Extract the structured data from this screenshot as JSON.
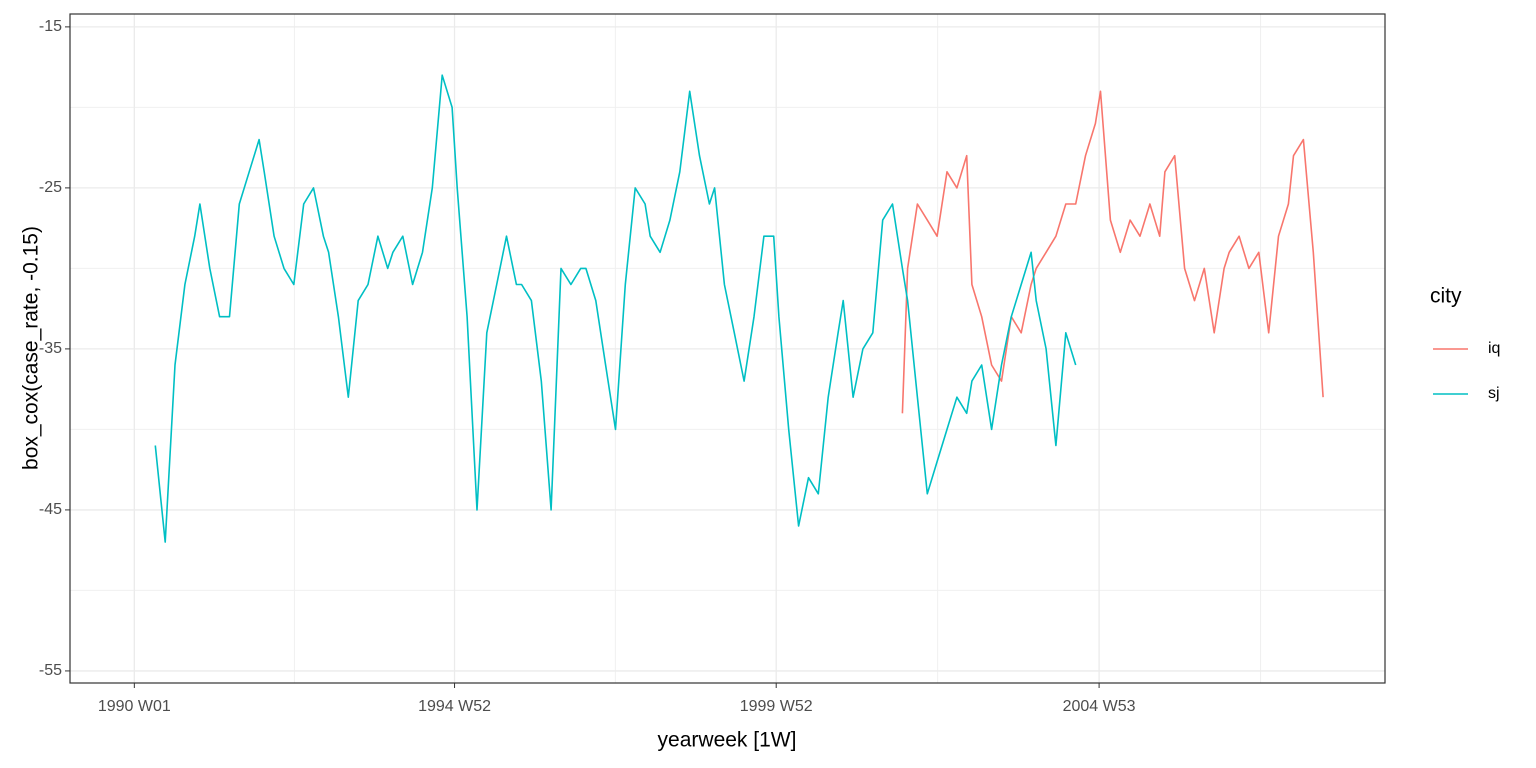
{
  "chart_data": {
    "type": "line",
    "x_label": "yearweek [1W]",
    "y_label": "box_cox(case_rate, -0.15)",
    "legend_title": "city",
    "legend_position": "right",
    "grid": true,
    "xlim": [
      "1989 W01",
      "2009 W24"
    ],
    "xticks": [
      "1990 W01",
      "1994 W52",
      "1999 W52",
      "2004 W53"
    ],
    "ylim": [
      -55.75,
      -14.2
    ],
    "yticks": [
      -15,
      -25,
      -35,
      -45,
      -55
    ],
    "x": [
      "1990 W02",
      "1990 W10",
      "1990 W18",
      "1990 W26",
      "1990 W34",
      "1990 W42",
      "1990 W50",
      "1991 W02",
      "1991 W10",
      "1991 W18",
      "1991 W26",
      "1991 W34",
      "1991 W42",
      "1991 W50",
      "1992 W02",
      "1992 W10",
      "1992 W18",
      "1992 W26",
      "1992 W34",
      "1992 W42",
      "1992 W50",
      "1993 W02",
      "1993 W10",
      "1993 W18",
      "1993 W26",
      "1993 W34",
      "1993 W42",
      "1993 W50",
      "1994 W02",
      "1994 W10",
      "1994 W18",
      "1994 W26",
      "1994 W34",
      "1994 W42",
      "1994 W50",
      "1995 W02",
      "1995 W10",
      "1995 W18",
      "1995 W26",
      "1995 W34",
      "1995 W42",
      "1995 W50",
      "1996 W02",
      "1996 W10",
      "1996 W18",
      "1996 W26",
      "1996 W34",
      "1996 W42",
      "1996 W50",
      "1997 W02",
      "1997 W10",
      "1997 W18",
      "1997 W26",
      "1997 W34",
      "1997 W42",
      "1997 W50",
      "1998 W02",
      "1998 W10",
      "1998 W18",
      "1998 W26",
      "1998 W34",
      "1998 W42",
      "1998 W50",
      "1999 W02",
      "1999 W10",
      "1999 W18",
      "1999 W26",
      "1999 W34",
      "1999 W42",
      "1999 W50",
      "2000 W02",
      "2000 W10",
      "2000 W18",
      "2000 W26",
      "2000 W34",
      "2000 W42",
      "2000 W50",
      "2001 W02",
      "2001 W10",
      "2001 W18",
      "2001 W26",
      "2001 W34",
      "2001 W42",
      "2001 W50",
      "2002 W02",
      "2002 W10",
      "2002 W18",
      "2002 W26",
      "2002 W34",
      "2002 W42",
      "2002 W50",
      "2003 W02",
      "2003 W10",
      "2003 W18",
      "2003 W26",
      "2003 W34",
      "2003 W42",
      "2003 W50",
      "2004 W02",
      "2004 W10",
      "2004 W18",
      "2004 W26",
      "2004 W34",
      "2004 W42",
      "2004 W50",
      "2005 W02",
      "2005 W10",
      "2005 W18",
      "2005 W26",
      "2005 W34",
      "2005 W42",
      "2005 W50",
      "2006 W02",
      "2006 W10",
      "2006 W18",
      "2006 W26",
      "2006 W34",
      "2006 W42",
      "2006 W50",
      "2007 W02",
      "2007 W10",
      "2007 W18",
      "2007 W26",
      "2007 W34",
      "2007 W42",
      "2007 W50",
      "2008 W02",
      "2008 W10",
      "2008 W18",
      "2008 W26",
      "2008 W34",
      "2008 W42",
      "2008 W50"
    ],
    "series": [
      {
        "name": "iq",
        "color": "#f8766d",
        "values": [
          null,
          null,
          null,
          null,
          null,
          null,
          null,
          null,
          null,
          null,
          null,
          null,
          null,
          null,
          null,
          null,
          null,
          null,
          null,
          null,
          null,
          null,
          null,
          null,
          null,
          null,
          null,
          null,
          null,
          null,
          null,
          null,
          null,
          null,
          null,
          null,
          null,
          null,
          null,
          null,
          null,
          null,
          null,
          null,
          null,
          null,
          null,
          null,
          null,
          null,
          null,
          null,
          null,
          null,
          null,
          null,
          null,
          null,
          null,
          null,
          null,
          null,
          null,
          null,
          null,
          null,
          null,
          null,
          null,
          null,
          null,
          null,
          null,
          null,
          null,
          null,
          null,
          null,
          null,
          null,
          null,
          null,
          null,
          -39,
          -30,
          -26,
          -27,
          -28,
          -24,
          -25,
          -23,
          -31,
          -33,
          -36,
          -37,
          -33,
          -34,
          -31,
          -30,
          -29,
          -28,
          -26,
          -26,
          -23,
          -21,
          -19,
          -27,
          -29,
          -27,
          -28,
          -26,
          -28,
          -24,
          -23,
          -30,
          -32,
          -30,
          -34,
          -30,
          -29,
          -28,
          -30,
          -29,
          -34,
          -28,
          -26,
          -23,
          -22,
          -29,
          -38,
          null,
          null,
          null
        ]
      },
      {
        "name": "sj",
        "color": "#00bfc4",
        "values": [
          null,
          null,
          -41,
          -47,
          -36,
          -31,
          -28,
          -26,
          -30,
          -33,
          -33,
          -26,
          -24,
          -22,
          -24,
          -28,
          -30,
          -31,
          -26,
          -25,
          -28,
          -29,
          -33,
          -38,
          -32,
          -31,
          -28,
          -30,
          -29,
          -28,
          -31,
          -29,
          -25,
          -18,
          -20,
          -25,
          -33,
          -45,
          -34,
          -31,
          -28,
          -31,
          -31,
          -32,
          -37,
          -45,
          -30,
          -31,
          -30,
          -30,
          -32,
          -36,
          -40,
          -31,
          -25,
          -26,
          -28,
          -29,
          -27,
          -24,
          -19,
          -23,
          -26,
          -25,
          -31,
          -34,
          -37,
          -33,
          -28,
          -28,
          -33,
          -40,
          -46,
          -43,
          -44,
          -38,
          -34,
          -32,
          -38,
          -35,
          -34,
          -27,
          -26,
          -30,
          -32,
          -38,
          -44,
          -42,
          -40,
          -38,
          -39,
          -37,
          -36,
          -40,
          -36,
          -33,
          -31,
          -29,
          -32,
          -35,
          -41,
          -34,
          -36,
          null,
          null,
          null,
          null,
          null,
          null,
          null,
          null,
          null,
          null,
          null,
          null,
          null,
          null,
          null,
          null,
          null,
          null,
          null,
          null,
          null,
          null,
          null,
          null,
          null,
          null,
          null,
          null,
          null,
          null
        ]
      }
    ]
  }
}
